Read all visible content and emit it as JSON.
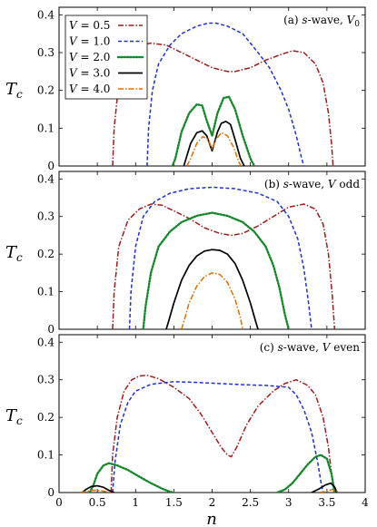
{
  "figure": {
    "xlabel": "n",
    "ylabel": "T",
    "ylabel_sub": "c"
  },
  "legend": {
    "placement": "top-left",
    "entries": [
      {
        "var": "V",
        "eq": " = 0.5",
        "color": "#9b1c1c",
        "dash": "dashdot"
      },
      {
        "var": "V",
        "eq": " = 1.0",
        "color": "#1f2fd6",
        "dash": "dashed"
      },
      {
        "var": "V",
        "eq": " = 2.0",
        "color": "#16882b",
        "dash": "dotted"
      },
      {
        "var": "V",
        "eq": " = 3.0",
        "color": "#000000",
        "dash": "solid"
      },
      {
        "var": "V",
        "eq": " = 4.0",
        "color": "#e06c00",
        "dash": "dashdot"
      }
    ]
  },
  "chart_data": [
    {
      "type": "line",
      "annotation": {
        "prefix": "(a) ",
        "wave": "s",
        "mid": "-wave, ",
        "var": "V",
        "sub": "0"
      },
      "xlim": [
        0,
        4
      ],
      "ylim": [
        0,
        0.42
      ],
      "yticks": [
        "0",
        "0.1",
        "0.2",
        "0.3",
        "0.4"
      ],
      "series": [
        {
          "x": [
            0.7,
            0.72,
            0.78,
            0.9,
            1.05,
            1.2,
            1.4,
            1.6,
            1.8,
            2.0,
            2.2,
            2.3,
            2.5,
            2.7,
            2.9,
            3.05,
            3.2,
            3.35,
            3.45,
            3.52,
            3.56,
            3.58
          ],
          "y": [
            0,
            0.1,
            0.22,
            0.3,
            0.32,
            0.325,
            0.32,
            0.3,
            0.28,
            0.26,
            0.25,
            0.25,
            0.26,
            0.28,
            0.295,
            0.305,
            0.3,
            0.27,
            0.22,
            0.14,
            0.06,
            0
          ]
        },
        {
          "x": [
            1.15,
            1.17,
            1.22,
            1.3,
            1.45,
            1.6,
            1.8,
            1.95,
            2.05,
            2.2,
            2.4,
            2.6,
            2.75,
            2.9,
            3.0,
            3.1,
            3.17,
            3.2
          ],
          "y": [
            0,
            0.1,
            0.2,
            0.27,
            0.32,
            0.35,
            0.37,
            0.378,
            0.378,
            0.37,
            0.35,
            0.3,
            0.26,
            0.2,
            0.15,
            0.08,
            0.02,
            0
          ]
        },
        {
          "x": [
            1.48,
            1.52,
            1.6,
            1.7,
            1.8,
            1.87,
            1.93,
            2.0,
            2.07,
            2.15,
            2.22,
            2.3,
            2.4,
            2.5,
            2.55
          ],
          "y": [
            0,
            0.02,
            0.09,
            0.14,
            0.163,
            0.16,
            0.12,
            0.08,
            0.14,
            0.18,
            0.183,
            0.15,
            0.08,
            0.02,
            0
          ]
        },
        {
          "x": [
            1.63,
            1.66,
            1.72,
            1.8,
            1.87,
            1.93,
            2.0,
            2.07,
            2.12,
            2.18,
            2.24,
            2.3,
            2.37,
            2.42
          ],
          "y": [
            0,
            0.02,
            0.06,
            0.088,
            0.093,
            0.08,
            0.04,
            0.09,
            0.113,
            0.118,
            0.11,
            0.07,
            0.02,
            0
          ]
        },
        {
          "x": [
            1.67,
            1.72,
            1.8,
            1.88,
            1.95,
            2.0,
            2.05,
            2.12,
            2.2,
            2.28,
            2.35,
            2.38
          ],
          "y": [
            0,
            0.02,
            0.06,
            0.078,
            0.07,
            0.045,
            0.07,
            0.088,
            0.08,
            0.05,
            0.01,
            0
          ]
        }
      ]
    },
    {
      "type": "line",
      "annotation": {
        "prefix": "(b) ",
        "wave": "s",
        "mid": "-wave, ",
        "var": "V",
        "sub": "",
        "suffix": " odd"
      },
      "xlim": [
        0,
        4
      ],
      "ylim": [
        0,
        0.42
      ],
      "yticks": [
        "0",
        "0.1",
        "0.2",
        "0.3",
        "0.4"
      ],
      "series": [
        {
          "x": [
            0.7,
            0.72,
            0.78,
            0.9,
            1.05,
            1.2,
            1.35,
            1.5,
            1.7,
            1.9,
            2.1,
            2.25,
            2.4,
            2.6,
            2.8,
            3.0,
            3.2,
            3.35,
            3.45,
            3.52,
            3.57,
            3.6
          ],
          "y": [
            0,
            0.1,
            0.22,
            0.29,
            0.32,
            0.333,
            0.33,
            0.315,
            0.295,
            0.27,
            0.255,
            0.25,
            0.255,
            0.275,
            0.3,
            0.325,
            0.333,
            0.32,
            0.28,
            0.2,
            0.09,
            0
          ]
        },
        {
          "x": [
            0.92,
            0.94,
            1.0,
            1.1,
            1.25,
            1.45,
            1.7,
            2.0,
            2.3,
            2.6,
            2.85,
            3.0,
            3.12,
            3.2,
            3.26,
            3.3
          ],
          "y": [
            0,
            0.1,
            0.22,
            0.3,
            0.34,
            0.362,
            0.374,
            0.378,
            0.374,
            0.362,
            0.34,
            0.3,
            0.24,
            0.16,
            0.07,
            0
          ]
        },
        {
          "x": [
            1.1,
            1.13,
            1.2,
            1.3,
            1.45,
            1.6,
            1.8,
            2.0,
            2.2,
            2.4,
            2.55,
            2.7,
            2.8,
            2.88,
            2.95,
            3.0
          ],
          "y": [
            0,
            0.06,
            0.15,
            0.22,
            0.26,
            0.285,
            0.302,
            0.31,
            0.302,
            0.285,
            0.26,
            0.22,
            0.17,
            0.11,
            0.04,
            0
          ]
        },
        {
          "x": [
            1.4,
            1.43,
            1.5,
            1.6,
            1.7,
            1.8,
            1.9,
            2.0,
            2.1,
            2.2,
            2.3,
            2.4,
            2.5,
            2.57,
            2.6
          ],
          "y": [
            0,
            0.02,
            0.07,
            0.13,
            0.17,
            0.195,
            0.208,
            0.212,
            0.21,
            0.2,
            0.175,
            0.13,
            0.07,
            0.02,
            0
          ]
        },
        {
          "x": [
            1.6,
            1.63,
            1.7,
            1.8,
            1.9,
            2.0,
            2.1,
            2.2,
            2.3,
            2.37,
            2.4
          ],
          "y": [
            0,
            0.02,
            0.07,
            0.115,
            0.14,
            0.15,
            0.146,
            0.125,
            0.08,
            0.03,
            0
          ]
        }
      ]
    },
    {
      "type": "line",
      "annotation": {
        "prefix": "(c) ",
        "wave": "s",
        "mid": "-wave, ",
        "var": "V",
        "sub": "",
        "suffix": " even"
      },
      "xlim": [
        0,
        4
      ],
      "ylim": [
        0,
        0.42
      ],
      "yticks": [
        "0",
        "0.1",
        "0.2",
        "0.3",
        "0.4"
      ],
      "xticks": [
        "0",
        "0.5",
        "1",
        "1.5",
        "2",
        "2.5",
        "3",
        "3.5",
        "4"
      ],
      "series": [
        {
          "x": [
            0.68,
            0.7,
            0.76,
            0.85,
            0.95,
            1.05,
            1.15,
            1.3,
            1.5,
            1.7,
            1.85,
            2.0,
            2.12,
            2.2,
            2.25,
            2.32,
            2.45,
            2.6,
            2.8,
            2.95,
            3.1,
            3.25,
            3.35,
            3.45,
            3.52,
            3.56,
            3.6
          ],
          "y": [
            0,
            0.1,
            0.2,
            0.27,
            0.3,
            0.31,
            0.312,
            0.303,
            0.28,
            0.25,
            0.21,
            0.16,
            0.12,
            0.1,
            0.095,
            0.12,
            0.18,
            0.23,
            0.27,
            0.29,
            0.3,
            0.285,
            0.26,
            0.2,
            0.12,
            0.05,
            0
          ]
        },
        {
          "x": [
            0.7,
            0.73,
            0.8,
            0.9,
            1.0,
            1.2,
            1.5,
            1.8,
            2.1,
            2.4,
            2.7,
            3.0,
            3.1,
            3.2,
            3.3,
            3.38,
            3.42,
            3.45
          ],
          "y": [
            0,
            0.08,
            0.18,
            0.24,
            0.27,
            0.288,
            0.295,
            0.293,
            0.29,
            0.287,
            0.285,
            0.28,
            0.26,
            0.22,
            0.16,
            0.08,
            0.03,
            0
          ]
        },
        {
          "x": [
            0.4,
            0.45,
            0.5,
            0.58,
            0.65,
            0.75,
            0.9,
            1.05,
            1.2,
            1.35,
            1.45,
            1.5
          ],
          "y": [
            0,
            0.02,
            0.05,
            0.072,
            0.078,
            0.073,
            0.06,
            0.042,
            0.025,
            0.01,
            0.002,
            0
          ],
          "x2": [
            2.85,
            2.95,
            3.05,
            3.15,
            3.25,
            3.35,
            3.42,
            3.5,
            3.56,
            3.6
          ],
          "y2": [
            0,
            0.008,
            0.025,
            0.05,
            0.075,
            0.095,
            0.1,
            0.09,
            0.05,
            0
          ]
        },
        {
          "x": [
            0.3,
            0.35,
            0.42,
            0.5,
            0.58,
            0.65,
            0.72
          ],
          "y": [
            0,
            0.008,
            0.016,
            0.018,
            0.014,
            0.006,
            0
          ],
          "x2": [
            3.3,
            3.4,
            3.48,
            3.55,
            3.6,
            3.63
          ],
          "y2": [
            0,
            0.01,
            0.02,
            0.025,
            0.015,
            0
          ]
        },
        {
          "x": [
            0.28,
            0.35,
            0.45,
            0.55,
            0.62,
            0.68
          ],
          "y": [
            0,
            0.003,
            0.006,
            0.005,
            0.002,
            0
          ],
          "x2": [
            3.4,
            3.5,
            3.57,
            3.62,
            3.66
          ],
          "y2": [
            0,
            0.004,
            0.008,
            0.005,
            0
          ]
        }
      ]
    }
  ]
}
